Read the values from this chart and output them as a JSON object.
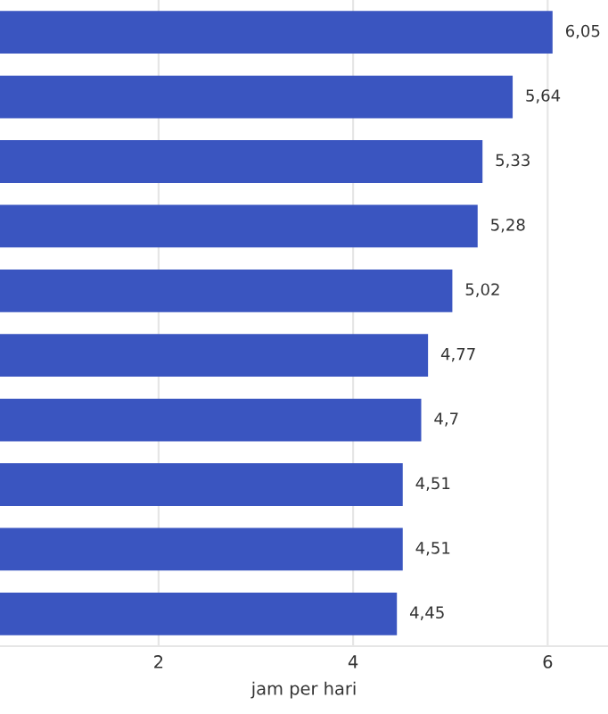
{
  "chart_data": {
    "type": "bar",
    "orientation": "horizontal",
    "xlabel": "jam per hari",
    "categories": [
      null,
      null,
      null,
      null,
      null,
      null,
      null,
      null,
      null,
      null
    ],
    "values": [
      6.05,
      5.64,
      5.33,
      5.28,
      5.02,
      4.77,
      4.7,
      4.51,
      4.51,
      4.45
    ],
    "value_labels": [
      "6,05",
      "5,64",
      "5,33",
      "5,28",
      "5,02",
      "4,77",
      "4,7",
      "4,51",
      "4,51",
      "4,45"
    ],
    "color": "#3a55c0",
    "xlim": [
      0.37,
      6.62
    ],
    "xticks": [
      2,
      4,
      6
    ],
    "grid": "x",
    "tick_labels": "x",
    "legend": false
  }
}
